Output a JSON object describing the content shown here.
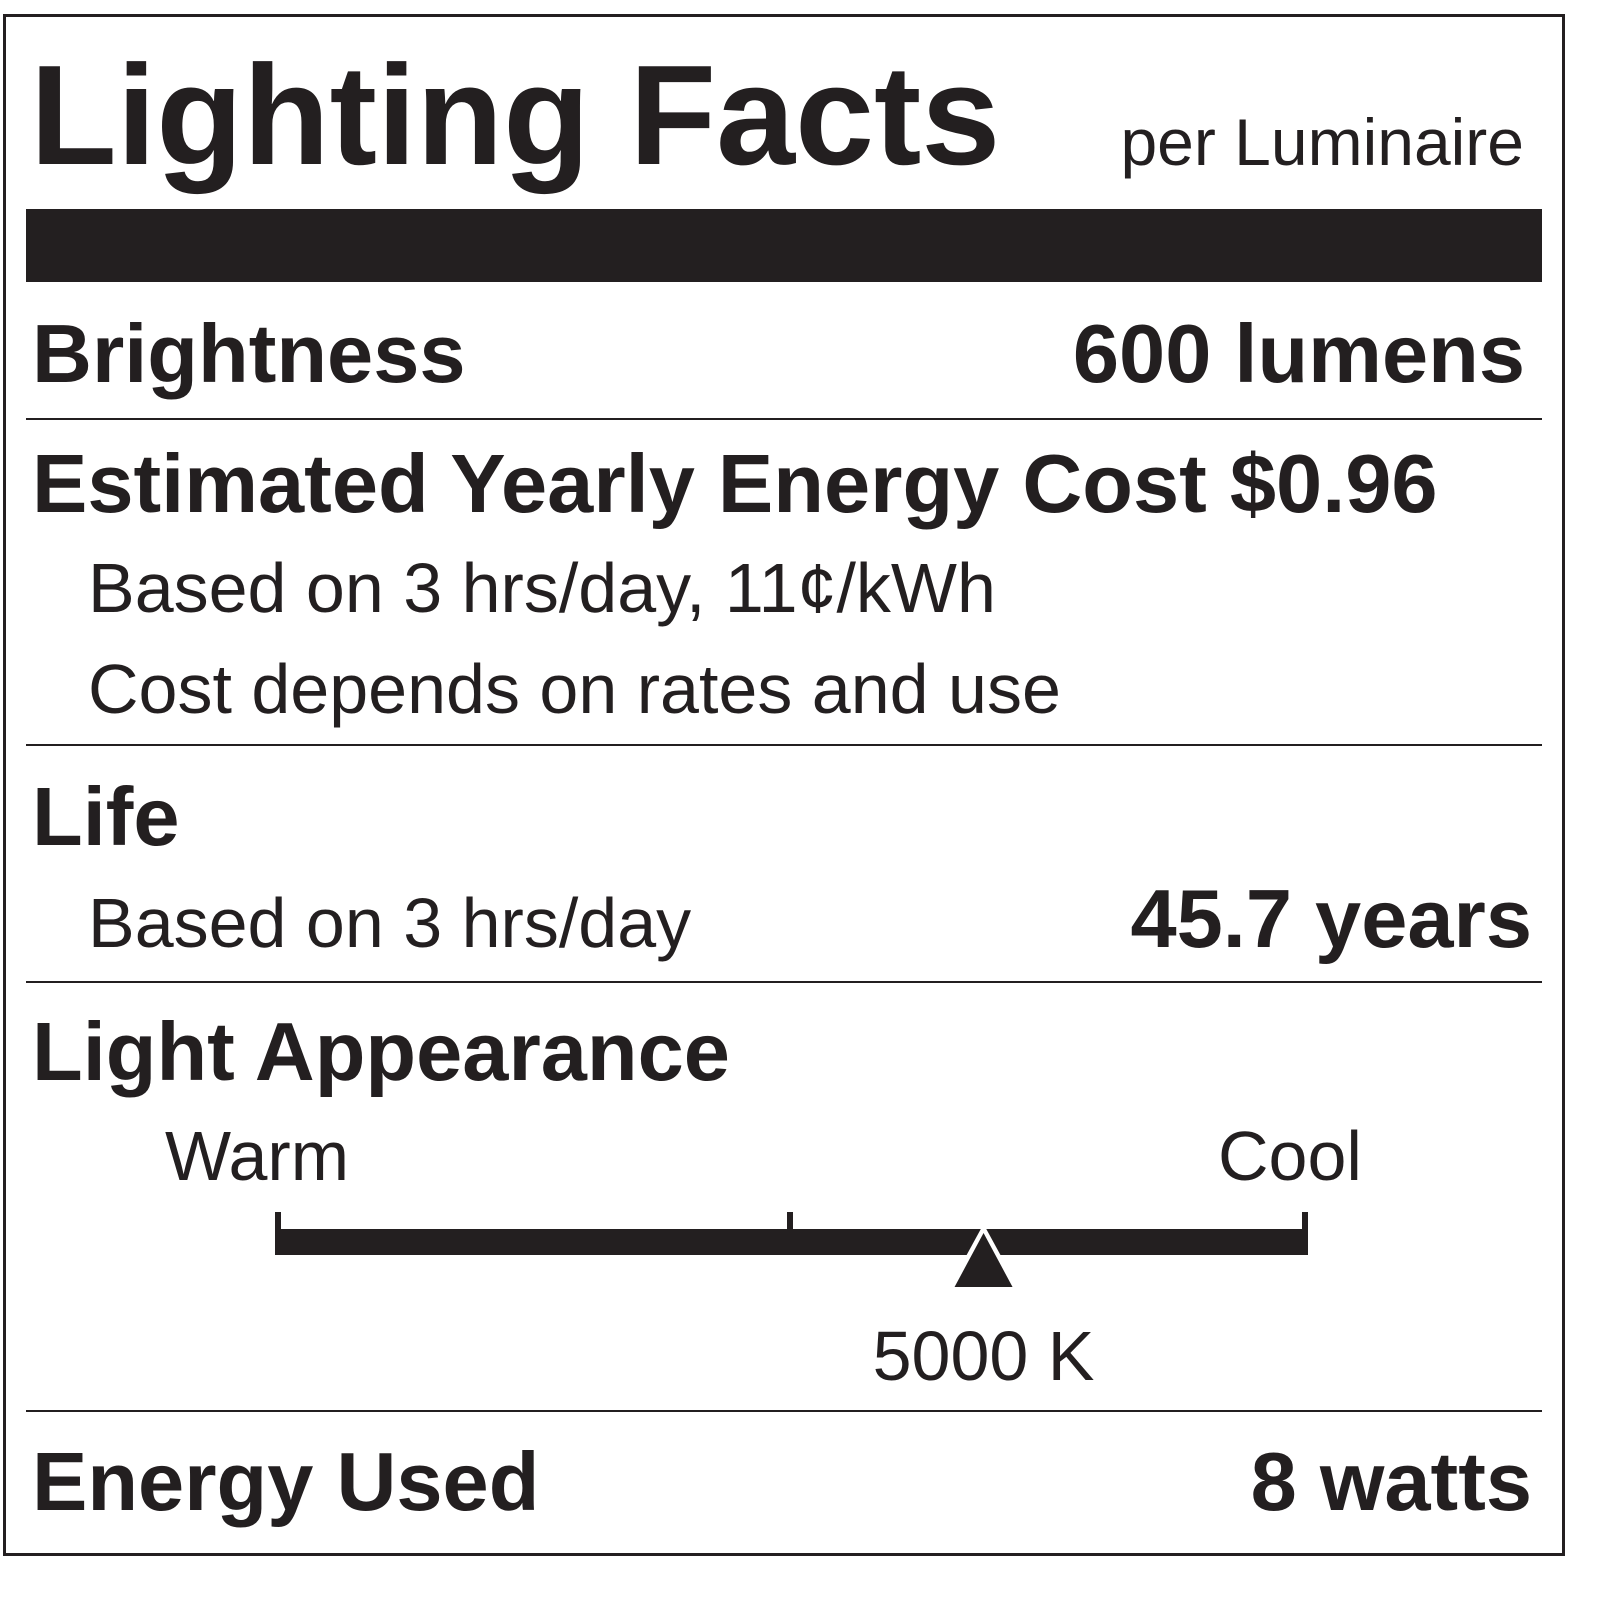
{
  "header": {
    "title": "Lighting Facts",
    "subtitle": "per Luminaire"
  },
  "brightness": {
    "label": "Brightness",
    "value": "600 lumens"
  },
  "energy_cost": {
    "label": "Estimated Yearly Energy Cost",
    "value": "$0.96",
    "note1": "Based on 3 hrs/day, 11¢/kWh",
    "note2": "Cost depends on rates and use"
  },
  "life": {
    "label": "Life",
    "note": "Based on 3 hrs/day",
    "value": "45.7 years"
  },
  "light_appearance": {
    "label": "Light Appearance",
    "warm_label": "Warm",
    "cool_label": "Cool",
    "value": "5000 K",
    "marker_fraction": 0.687
  },
  "energy_used": {
    "label": "Energy Used",
    "value": "8 watts"
  },
  "colors": {
    "ink": "#231f20",
    "background": "#ffffff"
  }
}
